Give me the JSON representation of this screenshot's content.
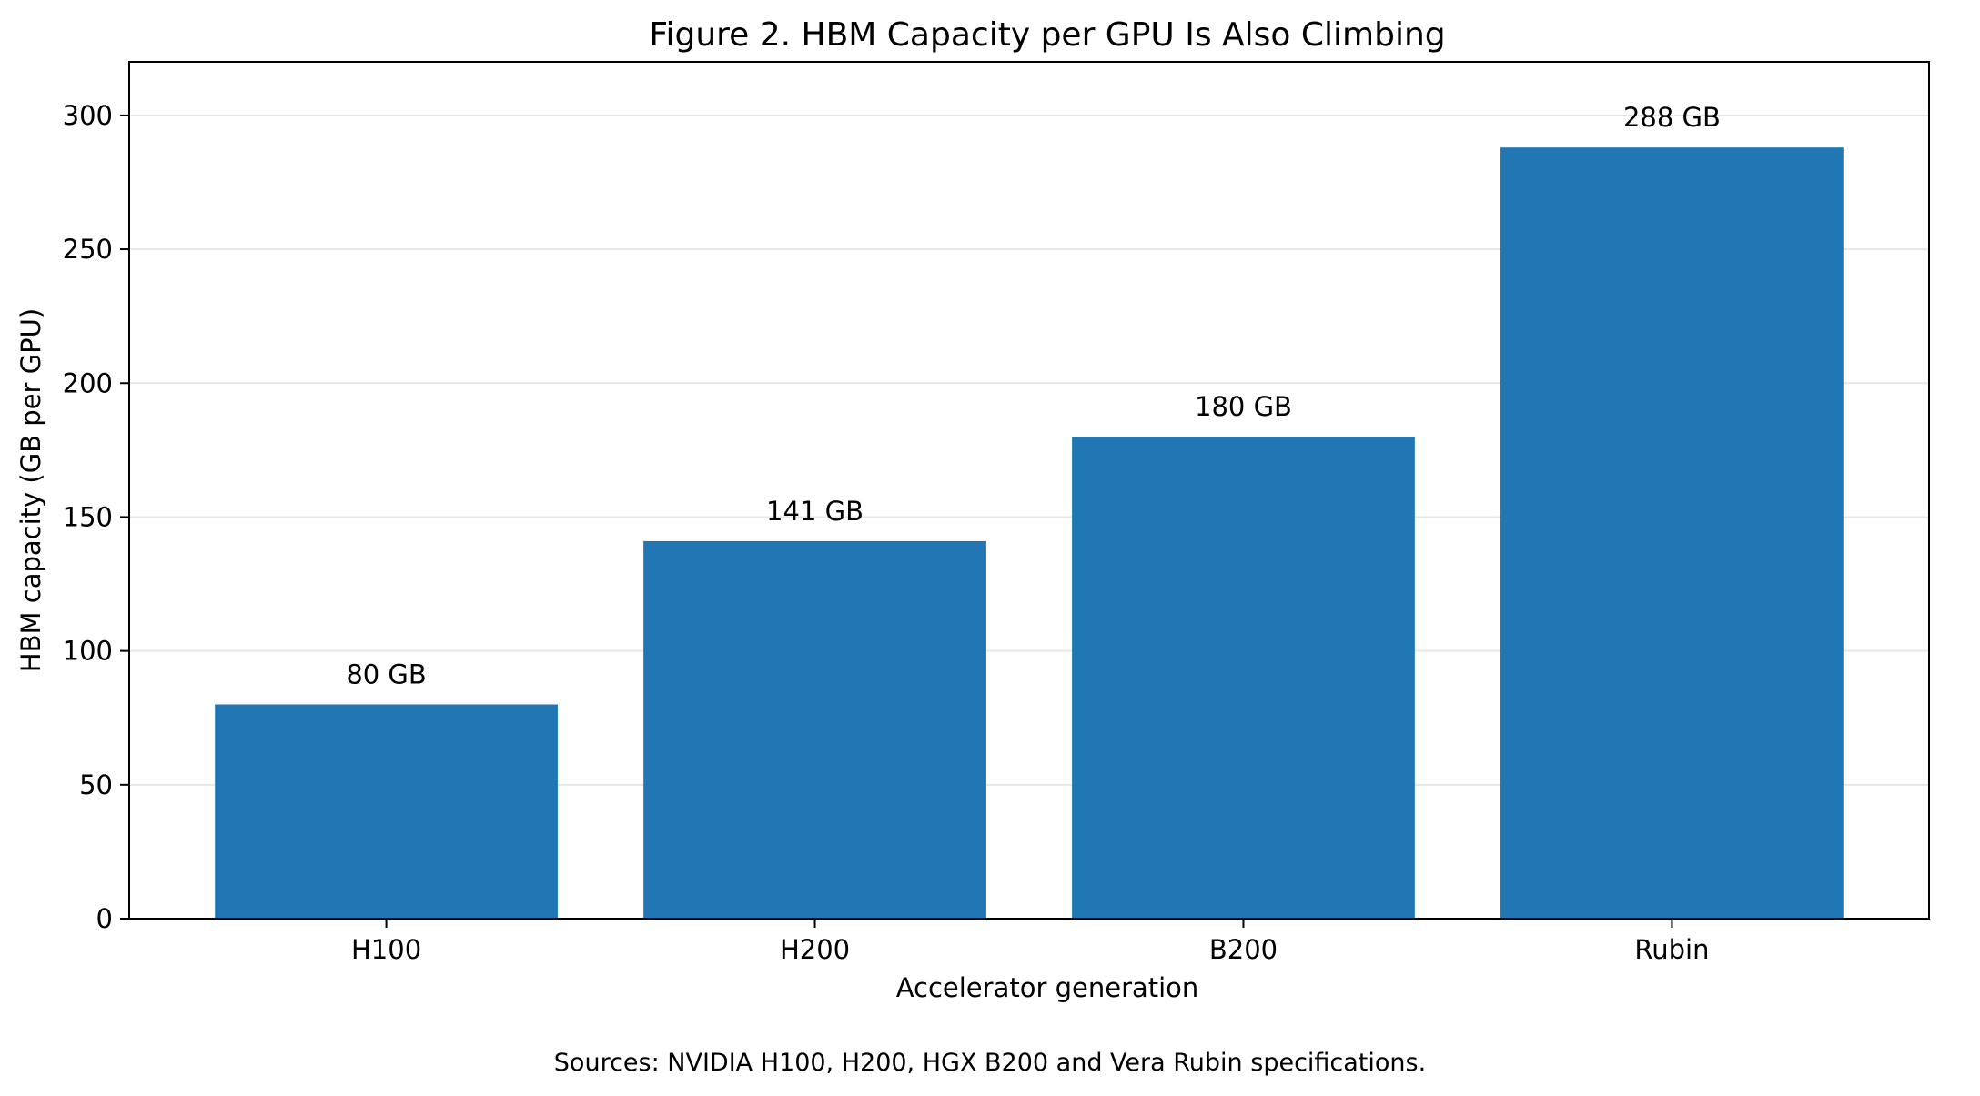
{
  "chart_data": {
    "type": "bar",
    "title": "Figure 2. HBM Capacity per GPU Is Also Climbing",
    "xlabel": "Accelerator generation",
    "ylabel": "HBM capacity (GB per GPU)",
    "categories": [
      "H100",
      "H200",
      "B200",
      "Rubin"
    ],
    "values": [
      80,
      141,
      180,
      288
    ],
    "data_labels": [
      "80 GB",
      "141 GB",
      "180 GB",
      "288 GB"
    ],
    "ylim": [
      0,
      320
    ],
    "yticks": [
      0,
      50,
      100,
      150,
      200,
      250,
      300
    ],
    "grid": "horizontal",
    "bar_color": "#2077b4"
  },
  "footer": {
    "source_note": "Sources: NVIDIA H100, H200, HGX B200 and Vera Rubin specifications."
  }
}
